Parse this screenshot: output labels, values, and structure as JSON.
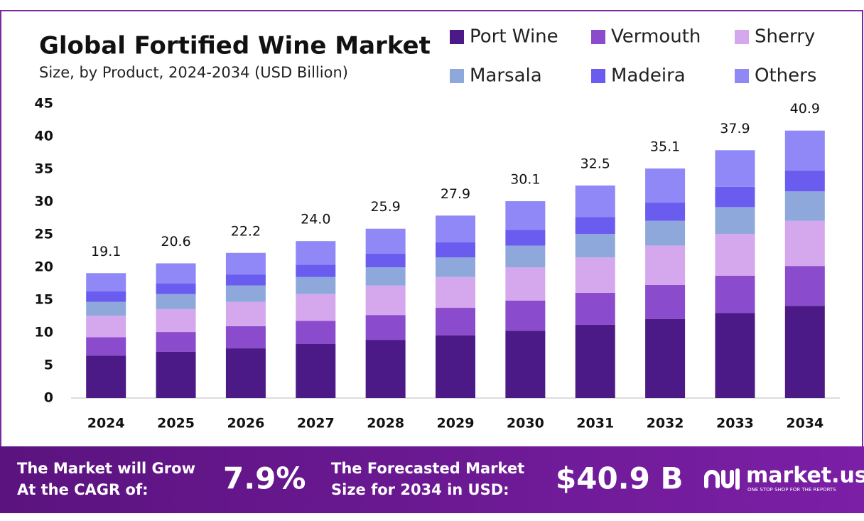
{
  "chart_data": {
    "type": "stacked-bar",
    "title": "Global Fortified Wine Market",
    "subtitle": "Size, by Product, 2024-2034 (USD Billion)",
    "categories": [
      "2024",
      "2025",
      "2026",
      "2027",
      "2028",
      "2029",
      "2030",
      "2031",
      "2032",
      "2033",
      "2034"
    ],
    "series": [
      {
        "name": "Port Wine",
        "color": "#4b1a86",
        "values": [
          6.5,
          7.1,
          7.6,
          8.3,
          8.9,
          9.6,
          10.3,
          11.2,
          12.1,
          13.0,
          14.1
        ]
      },
      {
        "name": "Vermouth",
        "color": "#8a4ccc",
        "values": [
          2.8,
          3.0,
          3.4,
          3.5,
          3.8,
          4.2,
          4.6,
          4.9,
          5.2,
          5.7,
          6.1
        ]
      },
      {
        "name": "Sherry",
        "color": "#d5a8ee",
        "values": [
          3.3,
          3.5,
          3.7,
          4.1,
          4.5,
          4.7,
          5.1,
          5.4,
          6.0,
          6.4,
          6.9
        ]
      },
      {
        "name": "Marsala",
        "color": "#8fa8dc",
        "values": [
          2.1,
          2.3,
          2.5,
          2.6,
          2.8,
          3.0,
          3.3,
          3.6,
          3.8,
          4.1,
          4.5
        ]
      },
      {
        "name": "Madeira",
        "color": "#6b5cf0",
        "values": [
          1.6,
          1.6,
          1.7,
          1.9,
          2.1,
          2.3,
          2.4,
          2.6,
          2.8,
          3.1,
          3.2
        ]
      },
      {
        "name": "Others",
        "color": "#9088f6",
        "values": [
          2.8,
          3.1,
          3.3,
          3.6,
          3.8,
          4.1,
          4.4,
          4.8,
          5.2,
          5.6,
          6.1
        ]
      }
    ],
    "totals": [
      19.1,
      20.6,
      22.2,
      24,
      25.9,
      27.9,
      30.1,
      32.5,
      35.1,
      37.9,
      40.9
    ],
    "value_labels": [
      "19.1",
      "20.6",
      "22.2",
      "24.0",
      "25.9",
      "27.9",
      "30.1",
      "32.5",
      "35.1",
      "37.9",
      "40.9"
    ],
    "ylim": [
      0,
      45
    ],
    "yticks": [
      0,
      5,
      10,
      15,
      20,
      25,
      30,
      35,
      40,
      45
    ],
    "grid": false,
    "legend": "top-right"
  },
  "footer": {
    "cagr_text": [
      "The Market will Grow",
      "At the CAGR of:"
    ],
    "cagr": "7.9%",
    "forecast_text": [
      "The Forecasted Market",
      "Size for 2034 in USD:"
    ],
    "forecast": "$40.9 B",
    "brand": "market.us",
    "tagline": "ONE STOP SHOP FOR THE REPORTS"
  }
}
